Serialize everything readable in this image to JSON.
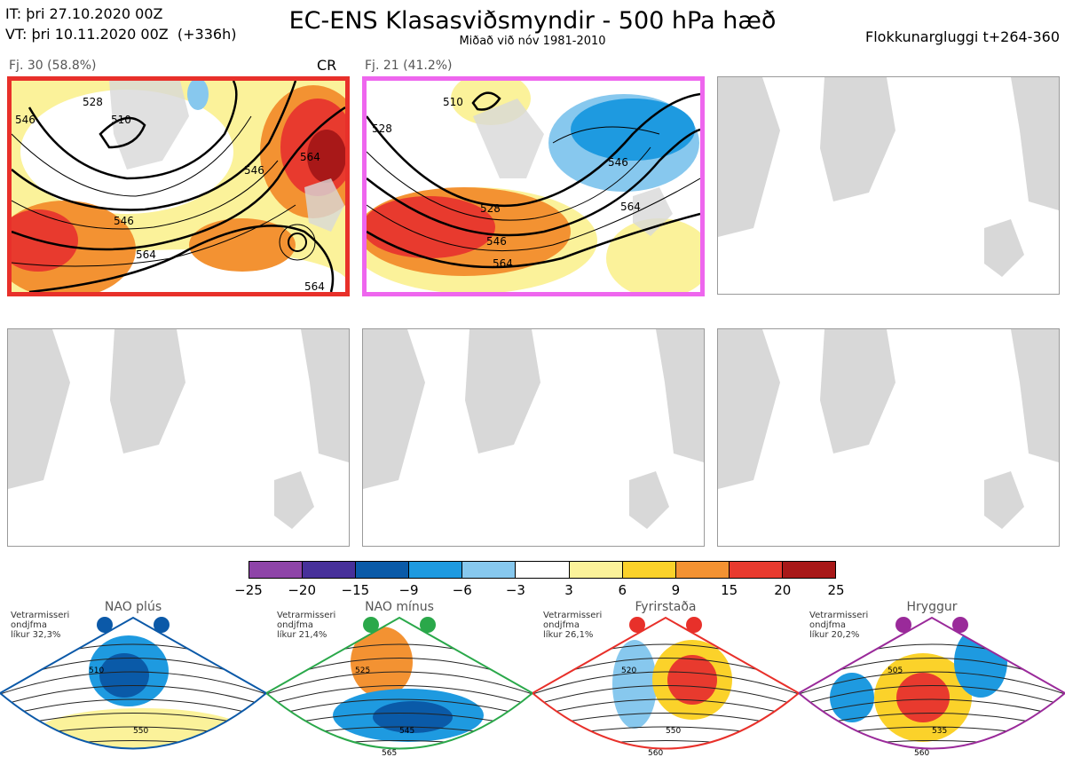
{
  "header": {
    "it_line": "IT: þri 27.10.2020 00Z",
    "vt_line": "VT: þri 10.11.2020 00Z  (+336h)",
    "title": "EC-ENS Klasasviðsmyndir - 500 hPa hæð",
    "subtitle": "Miðað við nóv 1981-2010",
    "window": "Flokkunargluggi t+264-360"
  },
  "clusters": [
    {
      "label": "Fj. 30 (58.8%)",
      "tag": "CR",
      "border": "#e8302a",
      "contours": [
        "510",
        "528",
        "546",
        "546",
        "564",
        "564",
        "564",
        "546"
      ]
    },
    {
      "label": "Fj. 21 (41.2%)",
      "tag": "",
      "border": "#ee66ee",
      "contours": [
        "510",
        "528",
        "528",
        "546",
        "546",
        "564",
        "564"
      ]
    }
  ],
  "colorbar": {
    "ticks": [
      "−25",
      "−20",
      "−15",
      "−9",
      "−6",
      "−3",
      "3",
      "6",
      "9",
      "15",
      "20",
      "25"
    ],
    "colors": [
      "#8e44a8",
      "#47309a",
      "#0a5aa8",
      "#1e9ae0",
      "#87c8ee",
      "#ffffff",
      "#fbf29a",
      "#fbd22a",
      "#f39232",
      "#e83a2e",
      "#a81818"
    ]
  },
  "regimes": [
    {
      "name": "NAO plús",
      "note_lines": [
        "Vetrarmisseri",
        "ondjfma",
        "líkur 32,3%"
      ],
      "color": "#0b59a8",
      "contours": [
        "510",
        "550"
      ]
    },
    {
      "name": "NAO mínus",
      "note_lines": [
        "Vetrarmisseri",
        "ondjfma",
        "líkur 21,4%"
      ],
      "color": "#2aa84a",
      "contours": [
        "525",
        "545",
        "565"
      ]
    },
    {
      "name": "Fyrirstaða",
      "note_lines": [
        "Vetrarmisseri",
        "ondjfma",
        "líkur 26,1%"
      ],
      "color": "#e8302a",
      "contours": [
        "520",
        "550",
        "560"
      ]
    },
    {
      "name": "Hryggur",
      "note_lines": [
        "Vetrarmisseri",
        "ondjfma",
        "líkur 20,2%"
      ],
      "color": "#9a2a9a",
      "contours": [
        "505",
        "535",
        "560"
      ]
    }
  ]
}
